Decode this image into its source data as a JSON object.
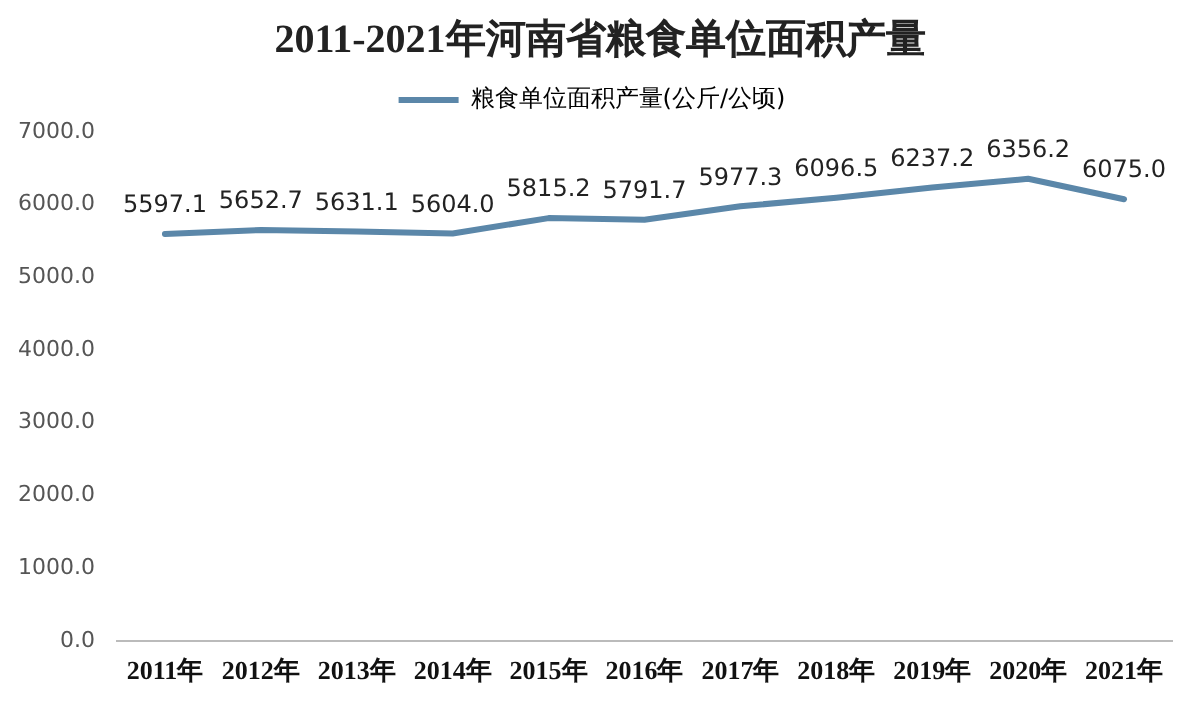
{
  "chart_data": {
    "type": "line",
    "title": "2011-2021年河南省粮食单位面积产量",
    "categories": [
      "2011年",
      "2012年",
      "2013年",
      "2014年",
      "2015年",
      "2016年",
      "2017年",
      "2018年",
      "2019年",
      "2020年",
      "2021年"
    ],
    "series": [
      {
        "name": "粮食单位面积产量(公斤/公顷)",
        "color": "#5b87a9",
        "values": [
          5597.1,
          5652.7,
          5631.1,
          5604.0,
          5815.2,
          5791.7,
          5977.3,
          6096.5,
          6237.2,
          6356.2,
          6075.0
        ],
        "value_labels": [
          "5597.1",
          "5652.7",
          "5631.1",
          "5604.0",
          "5815.2",
          "5791.7",
          "5977.3",
          "6096.5",
          "6237.2",
          "6356.2",
          "6075.0"
        ]
      }
    ],
    "ylim": [
      0,
      7000
    ],
    "yticks": [
      {
        "value": 0,
        "label": "0.0"
      },
      {
        "value": 1000,
        "label": "1000.0"
      },
      {
        "value": 2000,
        "label": "2000.0"
      },
      {
        "value": 3000,
        "label": "3000.0"
      },
      {
        "value": 4000,
        "label": "4000.0"
      },
      {
        "value": 5000,
        "label": "5000.0"
      },
      {
        "value": 6000,
        "label": "6000.0"
      },
      {
        "value": 7000,
        "label": "7000.0"
      }
    ],
    "grid": false,
    "legend": "top",
    "marker": "none",
    "line_style": "solid"
  }
}
